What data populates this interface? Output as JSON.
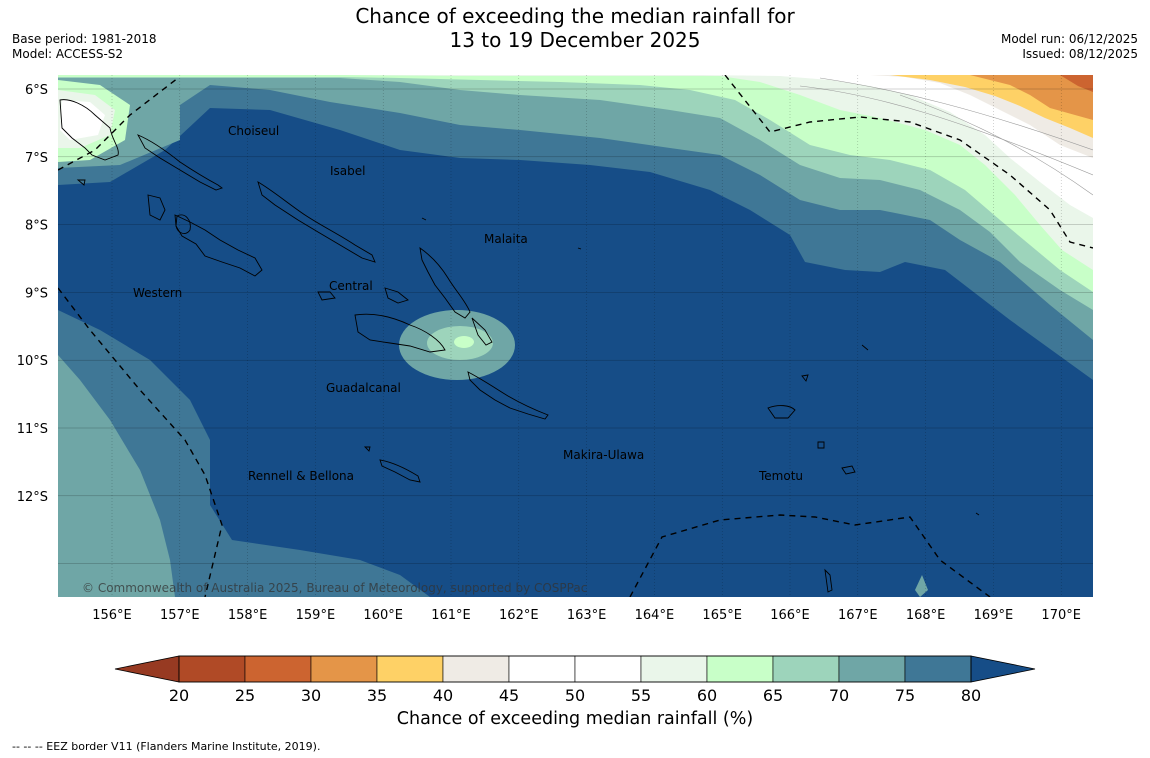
{
  "title": {
    "line1": "Chance of exceeding the median rainfall for",
    "line2": "13 to 19 December 2025"
  },
  "meta_left": {
    "base_period": "Base period: 1981-2018",
    "model": "Model: ACCESS-S2"
  },
  "meta_right": {
    "model_run": "Model run: 06/12/2025",
    "issued": "Issued: 08/12/2025"
  },
  "map": {
    "lat_labels": [
      "6°S",
      "7°S",
      "8°S",
      "9°S",
      "10°S",
      "11°S",
      "12°S"
    ],
    "lon_labels": [
      "156°E",
      "157°E",
      "158°E",
      "159°E",
      "160°E",
      "161°E",
      "162°E",
      "163°E",
      "164°E",
      "165°E",
      "166°E",
      "167°E",
      "168°E",
      "169°E",
      "170°E"
    ],
    "regions": [
      "Choiseul",
      "Isabel",
      "Malaita",
      "Central",
      "Western",
      "Guadalcanal",
      "Rennell & Bellona",
      "Makira-Ulawa",
      "Temotu"
    ],
    "copyright": "© Commonwealth of Australia 2025, Bureau of Meteorology, supported by COSPPac"
  },
  "colorbar": {
    "ticks": [
      "20",
      "25",
      "30",
      "35",
      "40",
      "45",
      "50",
      "55",
      "60",
      "65",
      "70",
      "75",
      "80"
    ],
    "colors": [
      "#b04a26",
      "#cc6430",
      "#e49548",
      "#fed166",
      "#efebe5",
      "#ffffff",
      "#ffffff",
      "#eaf6ea",
      "#c8ffc8",
      "#9dd4bb",
      "#6fa6a6",
      "#3f7796"
    ],
    "low_extend_color": "#973a22",
    "high_extend_color": "#164d87",
    "label": "Chance of exceeding median rainfall (%)"
  },
  "footer": "--  --  -- EEZ border V11 (Flanders Marine Institute, 2019)."
}
